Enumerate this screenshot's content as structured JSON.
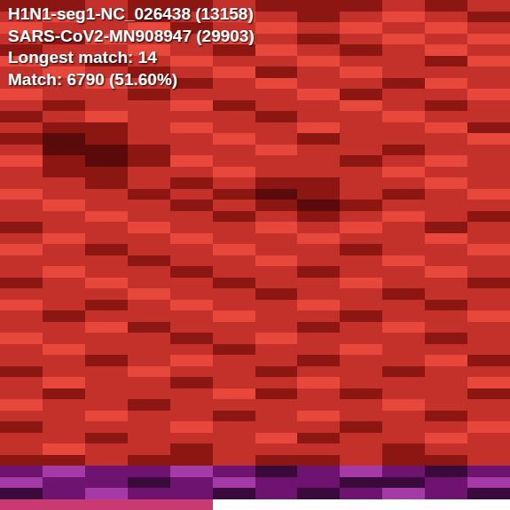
{
  "chart_data": {
    "type": "heatmap",
    "texts": [
      "H1N1-seg1-NC_026438 (13158)",
      "SARS-CoV2-MN908947 (29903)",
      "Longest match: 14",
      "Match: 6790 (51.60%)"
    ],
    "zlim": [
      0,
      7
    ],
    "colors": [
      "#5a0a0a",
      "#8c1712",
      "#c4302a",
      "#e8483c",
      "#3a0a3c",
      "#6e1470",
      "#a33aa6",
      "#c83a70"
    ],
    "tick_labels": false,
    "cells": [
      [
        1,
        1,
        2,
        1,
        1,
        2,
        1,
        1,
        1,
        2,
        1,
        2
      ],
      [
        2,
        3,
        2,
        1,
        2,
        3,
        2,
        1,
        2,
        3,
        2,
        1
      ],
      [
        3,
        2,
        2,
        3,
        1,
        2,
        3,
        2,
        3,
        2,
        3,
        2
      ],
      [
        2,
        1,
        3,
        2,
        2,
        3,
        2,
        1,
        2,
        3,
        2,
        3
      ],
      [
        1,
        2,
        2,
        3,
        2,
        1,
        3,
        2,
        1,
        2,
        3,
        2
      ],
      [
        3,
        2,
        1,
        2,
        3,
        2,
        2,
        3,
        2,
        2,
        1,
        3
      ],
      [
        2,
        3,
        2,
        1,
        2,
        3,
        1,
        2,
        3,
        2,
        2,
        2
      ],
      [
        2,
        2,
        3,
        2,
        1,
        2,
        3,
        2,
        2,
        1,
        3,
        2
      ],
      [
        3,
        2,
        2,
        1,
        2,
        2,
        2,
        3,
        1,
        2,
        2,
        3
      ],
      [
        2,
        1,
        2,
        2,
        3,
        1,
        2,
        2,
        3,
        2,
        1,
        2
      ],
      [
        1,
        2,
        3,
        2,
        2,
        2,
        1,
        2,
        2,
        3,
        2,
        2
      ],
      [
        2,
        1,
        1,
        2,
        3,
        2,
        2,
        3,
        2,
        2,
        3,
        1
      ],
      [
        1,
        0,
        1,
        2,
        2,
        3,
        2,
        1,
        2,
        2,
        2,
        3
      ],
      [
        2,
        0,
        0,
        1,
        2,
        2,
        3,
        2,
        2,
        1,
        2,
        2
      ],
      [
        3,
        1,
        0,
        1,
        3,
        2,
        2,
        2,
        1,
        2,
        3,
        2
      ],
      [
        2,
        1,
        1,
        2,
        2,
        3,
        2,
        2,
        2,
        3,
        2,
        2
      ],
      [
        2,
        2,
        1,
        2,
        1,
        2,
        1,
        1,
        2,
        2,
        3,
        2
      ],
      [
        3,
        2,
        2,
        1,
        2,
        1,
        0,
        1,
        2,
        1,
        2,
        3
      ],
      [
        2,
        3,
        2,
        2,
        1,
        2,
        1,
        0,
        1,
        2,
        2,
        2
      ],
      [
        2,
        2,
        3,
        2,
        2,
        1,
        2,
        1,
        2,
        3,
        2,
        1
      ],
      [
        1,
        2,
        2,
        3,
        2,
        2,
        3,
        2,
        3,
        2,
        1,
        2
      ],
      [
        2,
        3,
        2,
        2,
        3,
        2,
        2,
        3,
        2,
        2,
        3,
        2
      ],
      [
        3,
        2,
        1,
        2,
        2,
        3,
        2,
        2,
        1,
        2,
        2,
        3
      ],
      [
        2,
        2,
        2,
        1,
        2,
        2,
        3,
        2,
        2,
        3,
        2,
        2
      ],
      [
        2,
        3,
        2,
        2,
        1,
        2,
        2,
        1,
        2,
        2,
        3,
        2
      ],
      [
        1,
        2,
        3,
        2,
        2,
        1,
        2,
        2,
        3,
        2,
        2,
        1
      ],
      [
        2,
        2,
        2,
        3,
        2,
        2,
        1,
        2,
        2,
        1,
        2,
        2
      ],
      [
        3,
        2,
        1,
        2,
        3,
        2,
        2,
        3,
        2,
        2,
        1,
        2
      ],
      [
        2,
        1,
        2,
        2,
        2,
        3,
        2,
        2,
        1,
        2,
        2,
        3
      ],
      [
        2,
        2,
        3,
        1,
        2,
        2,
        2,
        1,
        2,
        3,
        2,
        2
      ],
      [
        3,
        2,
        2,
        2,
        1,
        2,
        3,
        2,
        2,
        2,
        1,
        2
      ],
      [
        2,
        3,
        2,
        2,
        2,
        1,
        2,
        2,
        3,
        2,
        2,
        2
      ],
      [
        2,
        2,
        1,
        2,
        3,
        2,
        2,
        1,
        2,
        2,
        3,
        1
      ],
      [
        1,
        2,
        2,
        3,
        2,
        2,
        1,
        2,
        2,
        1,
        2,
        2
      ],
      [
        2,
        3,
        2,
        2,
        1,
        2,
        2,
        3,
        2,
        2,
        2,
        3
      ],
      [
        2,
        1,
        2,
        2,
        2,
        3,
        1,
        2,
        1,
        2,
        2,
        1
      ],
      [
        3,
        2,
        2,
        1,
        2,
        2,
        2,
        2,
        2,
        3,
        2,
        2
      ],
      [
        2,
        2,
        3,
        2,
        2,
        1,
        2,
        3,
        2,
        2,
        1,
        2
      ],
      [
        1,
        2,
        2,
        2,
        3,
        2,
        2,
        2,
        1,
        2,
        2,
        3
      ],
      [
        2,
        2,
        1,
        2,
        2,
        2,
        3,
        1,
        2,
        2,
        3,
        2
      ],
      [
        2,
        3,
        2,
        2,
        1,
        2,
        2,
        2,
        2,
        1,
        2,
        2
      ],
      [
        1,
        1,
        2,
        1,
        1,
        2,
        1,
        1,
        2,
        1,
        1,
        2
      ],
      [
        5,
        6,
        5,
        5,
        6,
        5,
        4,
        5,
        6,
        5,
        4,
        5
      ],
      [
        6,
        5,
        5,
        4,
        5,
        6,
        5,
        5,
        4,
        4,
        5,
        6
      ],
      [
        4,
        5,
        6,
        5,
        5,
        4,
        5,
        4,
        5,
        6,
        5,
        4
      ],
      [
        7,
        7,
        7,
        7,
        7,
        null,
        null,
        null,
        null,
        null,
        null,
        null
      ]
    ]
  }
}
